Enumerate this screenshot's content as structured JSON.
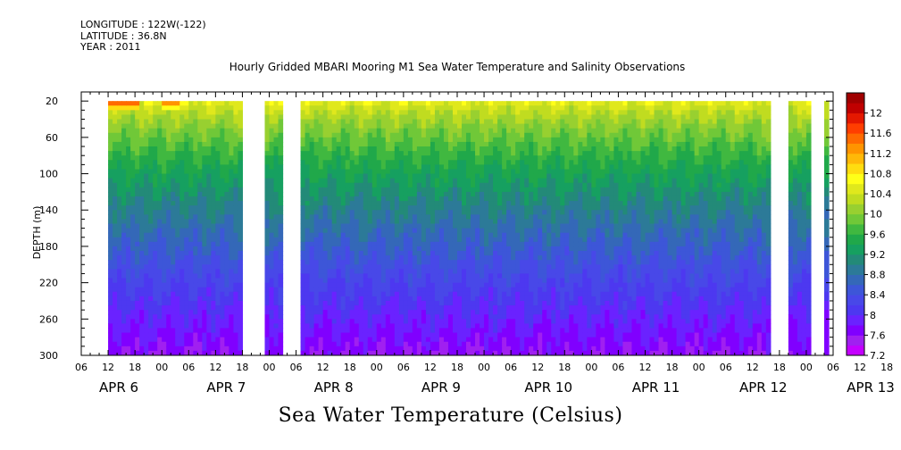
{
  "meta": {
    "longitude": "LONGITUDE : 122W(-122)",
    "latitude": "LATITUDE : 36.8N",
    "year": "YEAR : 2011"
  },
  "title": "Hourly Gridded MBARI Mooring M1 Sea Water Temperature and Salinity Observations",
  "footer": "Sea Water Temperature (Celsius)",
  "chart_data": {
    "type": "heatmap",
    "title": "Hourly Gridded MBARI Mooring M1 Sea Water Temperature and Salinity Observations",
    "ylabel": "DEPTH (m)",
    "xlabel": "",
    "colorbar_label": "Sea Water Temperature (Celsius)",
    "ylim": [
      300,
      10
    ],
    "y_ticks": [
      20,
      60,
      100,
      140,
      180,
      220,
      260,
      300
    ],
    "x_hour_ticks": [
      "06",
      "12",
      "18",
      "00",
      "06",
      "12",
      "18",
      "00",
      "06",
      "12",
      "18",
      "00",
      "06",
      "12",
      "18",
      "00",
      "06",
      "12",
      "18",
      "00",
      "06",
      "12",
      "18",
      "00",
      "06",
      "12",
      "18",
      "00",
      "06",
      "12",
      "18",
      "00",
      "06"
    ],
    "x_day_labels": [
      "APR  6",
      "APR  7",
      "APR  8",
      "APR  9",
      "APR 10",
      "APR 11",
      "APR 12",
      "APR 13"
    ],
    "time_range_hours_from_apr6_00": [
      6,
      174
    ],
    "colorbar_levels": [
      7.2,
      7.4,
      7.6,
      7.8,
      8,
      8.2,
      8.4,
      8.6,
      8.8,
      9,
      9.2,
      9.4,
      9.6,
      9.8,
      10,
      10.2,
      10.4,
      10.6,
      10.8,
      11,
      11.2,
      11.4,
      11.6,
      11.8,
      12,
      12.2
    ],
    "colorbar_labels": [
      "12",
      "11.6",
      "11.2",
      "10.8",
      "10.4",
      "10",
      "9.6",
      "9.2",
      "8.8",
      "8.4",
      "8",
      "7.6",
      "7.2"
    ],
    "colorbar_colors": [
      "#c400ff",
      "#a020f0",
      "#8000ff",
      "#6a22ff",
      "#4d38f0",
      "#4848e8",
      "#3d56d8",
      "#3468b8",
      "#2c7a98",
      "#238a78",
      "#16a060",
      "#20a84a",
      "#40b840",
      "#70c838",
      "#98d030",
      "#c0dc20",
      "#e0e81c",
      "#ffff18",
      "#ffdc10",
      "#ffb808",
      "#ff9400",
      "#ff6a00",
      "#ff3e00",
      "#e41800",
      "#c00000",
      "#a00000"
    ],
    "data_gaps_hours": [
      [
        41.5,
        47.5
      ],
      [
        51,
        55
      ],
      [
        160,
        164
      ],
      [
        168.5,
        172
      ]
    ],
    "columns_start_hour": 12,
    "surface_temp_approx": 10.6,
    "bottom_temp_approx": 7.6,
    "warm_patches": [
      {
        "start_hour": 12,
        "end_hour": 19,
        "max_temp": 11.8
      },
      {
        "start_hour": 24,
        "end_hour": 28,
        "max_temp": 11.6
      }
    ]
  }
}
